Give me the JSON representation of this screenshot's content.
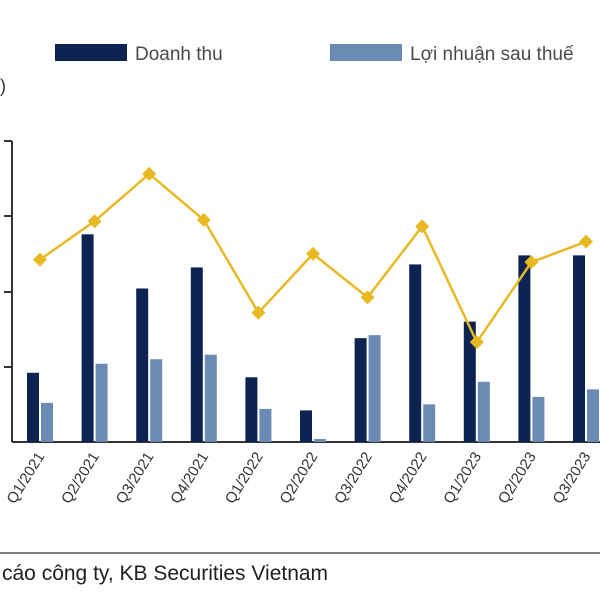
{
  "chart_data": {
    "type": "bar",
    "categories": [
      "Q1/2021",
      "Q2/2021",
      "Q3/2021",
      "Q4/2021",
      "Q1/2022",
      "Q2/2022",
      "Q3/2022",
      "Q4/2022",
      "Q1/2023",
      "Q2/2023",
      "Q3/2023"
    ],
    "series": [
      {
        "name": "Doanh thu",
        "type": "bar",
        "color": "#0d2452",
        "values": [
          46,
          138,
          102,
          116,
          43,
          21,
          69,
          118,
          80,
          124,
          124
        ]
      },
      {
        "name": "Lợi nhuận sau thuế",
        "type": "bar",
        "color": "#6b8bb5",
        "values": [
          26,
          52,
          55,
          58,
          22,
          2,
          71,
          25,
          40,
          30,
          35
        ]
      },
      {
        "name": "",
        "type": "line",
        "color": "#e8b923",
        "marker": "diamond",
        "values": [
          0.285,
          0.345,
          0.419,
          0.347,
          0.202,
          0.294,
          0.226,
          0.337,
          0.156,
          0.281,
          0.313
        ]
      }
    ],
    "unit_label": ")",
    "ylim": [
      0,
      200
    ],
    "grid": false,
    "legend": "top",
    "source_text": "cáo công ty, KB Securities Vietnam"
  }
}
